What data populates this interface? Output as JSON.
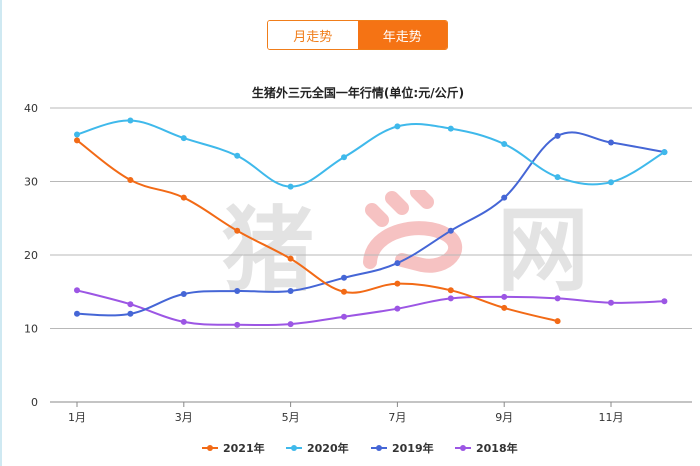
{
  "tabs": {
    "month_label": "月走势",
    "year_label": "年走势"
  },
  "watermark": {
    "text": "猪网"
  },
  "chart_data": {
    "type": "line",
    "title": "生猪外三元全国一年行情(单位:元/公斤)",
    "xlabel": "",
    "ylabel": "",
    "ylim": [
      0,
      40
    ],
    "y_ticks": [
      0,
      10,
      20,
      30,
      40
    ],
    "y_tick_labels": [
      "0",
      "10",
      "20",
      "30",
      "40"
    ],
    "x": [
      1,
      2,
      3,
      4,
      5,
      6,
      7,
      8,
      9,
      10,
      11,
      12
    ],
    "x_tick_labels": [
      "1月",
      "3月",
      "5月",
      "7月",
      "9月",
      "11月"
    ],
    "x_tick_values": [
      1,
      3,
      5,
      7,
      9,
      11
    ],
    "grid": true,
    "legend_position": "bottom",
    "series": [
      {
        "name": "2021年",
        "color": "#f26a16",
        "values": [
          35.6,
          30.2,
          27.8,
          23.3,
          19.5,
          15.0,
          16.1,
          15.2,
          12.8,
          11.0,
          null,
          null
        ]
      },
      {
        "name": "2020年",
        "color": "#3fb9eb",
        "values": [
          36.4,
          38.3,
          35.9,
          33.5,
          29.3,
          33.3,
          37.5,
          37.2,
          35.1,
          30.6,
          29.9,
          34.0
        ]
      },
      {
        "name": "2019年",
        "color": "#4566d6",
        "values": [
          12.0,
          12.0,
          14.7,
          15.1,
          15.1,
          16.9,
          18.9,
          23.3,
          27.8,
          36.2,
          35.3,
          34.0
        ]
      },
      {
        "name": "2018年",
        "color": "#9c56e4",
        "values": [
          15.2,
          13.3,
          10.9,
          10.5,
          10.6,
          11.6,
          12.7,
          14.1,
          14.3,
          14.1,
          13.5,
          13.7
        ]
      }
    ]
  }
}
